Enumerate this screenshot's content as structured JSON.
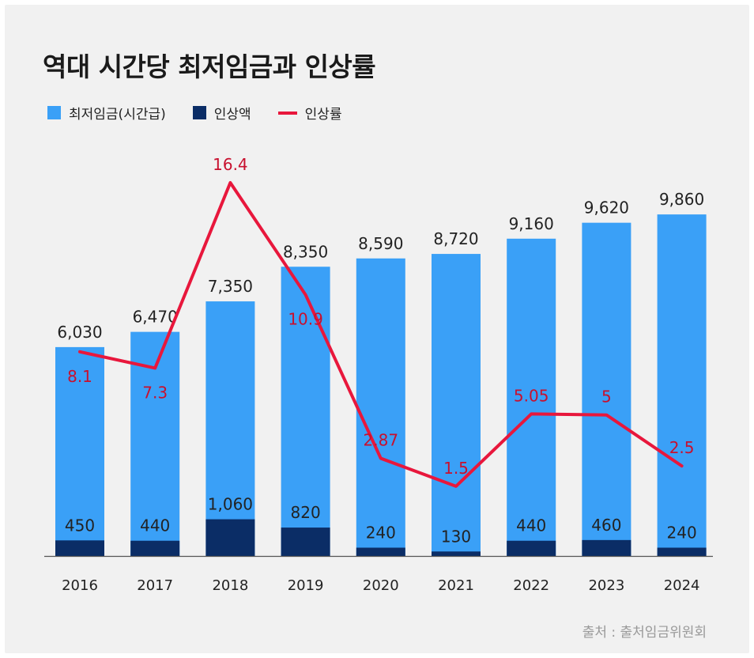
{
  "chart_data": {
    "type": "bar",
    "title": "역대 시간당 최저임금과 인상률",
    "categories": [
      "2016",
      "2017",
      "2018",
      "2019",
      "2020",
      "2021",
      "2022",
      "2023",
      "2024"
    ],
    "series": [
      {
        "name": "최저임금(시간급)",
        "type": "bar",
        "color": "#3aa0f7",
        "values": [
          6030,
          6470,
          7350,
          8350,
          8590,
          8720,
          9160,
          9620,
          9860
        ],
        "labels": [
          "6,030",
          "6,470",
          "7,350",
          "8,350",
          "8,590",
          "8,720",
          "9,160",
          "9,620",
          "9,860"
        ]
      },
      {
        "name": "인상액",
        "type": "bar",
        "color": "#0b2d66",
        "values": [
          450,
          440,
          1060,
          820,
          240,
          130,
          440,
          460,
          240
        ],
        "labels": [
          "450",
          "440",
          "1,060",
          "820",
          "240",
          "130",
          "440",
          "460",
          "240"
        ]
      },
      {
        "name": "인상률",
        "type": "line",
        "color": "#e8173c",
        "values": [
          8.1,
          7.3,
          16.4,
          10.9,
          2.87,
          1.5,
          5.05,
          5,
          2.5
        ],
        "labels": [
          "8.1",
          "7.3",
          "16.4",
          "10.9",
          "2.87",
          "1.5",
          "5.05",
          "5",
          "2.5"
        ]
      }
    ],
    "legend_position": "top-left",
    "grid": false
  },
  "source": "출처 : 출처임금위원회",
  "colors": {
    "background": "#f1f1f1",
    "bar": "#3aa0f7",
    "increase": "#0b2d66",
    "rate": "#e8173c"
  }
}
